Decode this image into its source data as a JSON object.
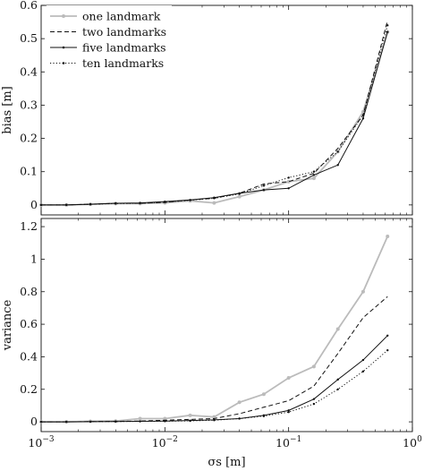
{
  "chart_data": [
    {
      "type": "line",
      "ylabel": "bias [m]",
      "xscale": "log",
      "xlim": [
        0.001,
        1
      ],
      "ylim": [
        -0.03,
        0.6
      ],
      "yticks": [
        "0",
        "0.1",
        "0.2",
        "0.3",
        "0.4",
        "0.5",
        "0.6"
      ],
      "legend_position": "top-left",
      "x": [
        0.001,
        0.0016,
        0.0025,
        0.004,
        0.0063,
        0.01,
        0.016,
        0.025,
        0.04,
        0.063,
        0.1,
        0.16,
        0.25,
        0.4,
        0.63
      ],
      "series": [
        {
          "name": "one landmark",
          "color": "#bbbbbb",
          "dash": "solid",
          "marker": "circle",
          "values": [
            0.0,
            0.0,
            0.002,
            0.004,
            0.004,
            0.006,
            0.012,
            0.006,
            0.025,
            0.045,
            0.07,
            0.08,
            0.16,
            0.28,
            0.52
          ]
        },
        {
          "name": "two landmarks",
          "color": "#111111",
          "dash": "dashed",
          "marker": "none",
          "values": [
            0.0,
            0.0,
            0.002,
            0.005,
            0.005,
            0.008,
            0.015,
            0.02,
            0.035,
            0.063,
            0.07,
            0.095,
            0.17,
            0.27,
            0.555
          ]
        },
        {
          "name": "five landmarks",
          "color": "#111111",
          "dash": "solid",
          "marker": "dot",
          "values": [
            0.0,
            0.0,
            0.002,
            0.005,
            0.006,
            0.01,
            0.015,
            0.022,
            0.035,
            0.045,
            0.05,
            0.09,
            0.12,
            0.26,
            0.52
          ]
        },
        {
          "name": "ten landmarks",
          "color": "#111111",
          "dash": "dotted",
          "marker": "dot",
          "values": [
            0.0,
            0.0,
            0.002,
            0.004,
            0.005,
            0.008,
            0.014,
            0.02,
            0.033,
            0.058,
            0.082,
            0.1,
            0.16,
            0.27,
            0.54
          ]
        }
      ]
    },
    {
      "type": "line",
      "xlabel": "σs [m]",
      "ylabel": "variance",
      "xscale": "log",
      "xlim": [
        0.001,
        1
      ],
      "ylim": [
        -0.06,
        1.25
      ],
      "yticks": [
        "0",
        "0.2",
        "0.4",
        "0.6",
        "0.8",
        "1",
        "1.2"
      ],
      "xticks": [
        "10−3",
        "10−2",
        "10−1",
        "100"
      ],
      "x": [
        0.001,
        0.0016,
        0.0025,
        0.004,
        0.0063,
        0.01,
        0.016,
        0.025,
        0.04,
        0.063,
        0.1,
        0.16,
        0.25,
        0.4,
        0.63
      ],
      "series": [
        {
          "name": "one landmark",
          "color": "#bbbbbb",
          "dash": "solid",
          "marker": "circle",
          "values": [
            0.0,
            0.0,
            0.003,
            0.005,
            0.02,
            0.02,
            0.04,
            0.03,
            0.12,
            0.17,
            0.27,
            0.34,
            0.57,
            0.8,
            1.14
          ]
        },
        {
          "name": "two landmarks",
          "color": "#111111",
          "dash": "dashed",
          "marker": "none",
          "values": [
            0.0,
            0.0,
            0.002,
            0.003,
            0.005,
            0.01,
            0.015,
            0.02,
            0.05,
            0.09,
            0.13,
            0.22,
            0.42,
            0.64,
            0.77
          ]
        },
        {
          "name": "five landmarks",
          "color": "#111111",
          "dash": "solid",
          "marker": "dot",
          "values": [
            0.0,
            0.0,
            0.001,
            0.002,
            0.003,
            0.005,
            0.008,
            0.012,
            0.02,
            0.04,
            0.07,
            0.14,
            0.26,
            0.38,
            0.53
          ]
        },
        {
          "name": "ten landmarks",
          "color": "#111111",
          "dash": "dotted",
          "marker": "dot",
          "values": [
            0.0,
            0.0,
            0.001,
            0.002,
            0.003,
            0.004,
            0.006,
            0.01,
            0.02,
            0.035,
            0.06,
            0.11,
            0.2,
            0.31,
            0.44
          ]
        }
      ]
    }
  ]
}
